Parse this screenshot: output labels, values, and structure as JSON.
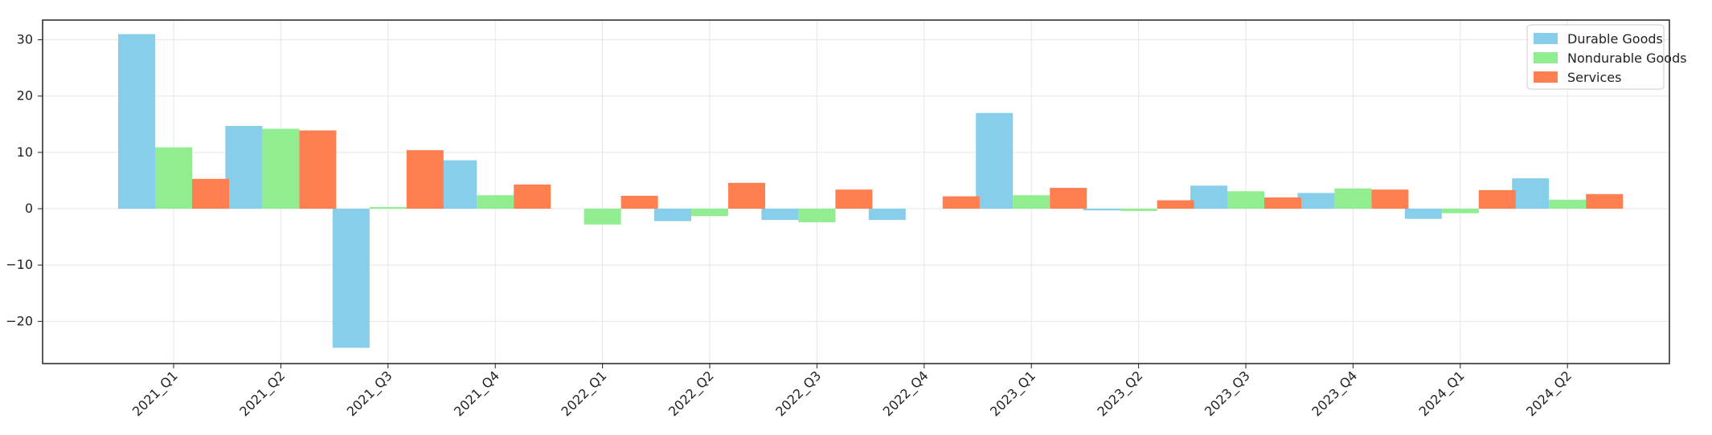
{
  "chart_data": {
    "type": "bar",
    "title": "",
    "xlabel": "",
    "ylabel": "",
    "categories": [
      "2021_Q1",
      "2021_Q2",
      "2021_Q3",
      "2021_Q4",
      "2022_Q1",
      "2022_Q2",
      "2022_Q3",
      "2022_Q4",
      "2023_Q1",
      "2023_Q2",
      "2023_Q3",
      "2023_Q4",
      "2024_Q1",
      "2024_Q2"
    ],
    "series": [
      {
        "name": "Durable Goods",
        "color": "#87CEEB",
        "values": [
          31.0,
          14.7,
          -24.7,
          8.6,
          0.0,
          -2.2,
          -2.0,
          -2.0,
          17.0,
          -0.3,
          4.1,
          2.8,
          -1.8,
          5.4
        ]
      },
      {
        "name": "Nondurable Goods",
        "color": "#90EE90",
        "values": [
          10.9,
          14.2,
          0.3,
          2.4,
          -2.8,
          -1.3,
          -2.4,
          0.0,
          2.4,
          -0.4,
          3.1,
          3.6,
          -0.8,
          1.6
        ]
      },
      {
        "name": "Services",
        "color": "#FF7F50",
        "values": [
          5.3,
          13.9,
          10.4,
          4.3,
          2.3,
          4.6,
          3.4,
          2.2,
          3.7,
          1.5,
          2.0,
          3.4,
          3.3,
          2.6
        ]
      }
    ],
    "yticks": [
      30,
      20,
      10,
      0,
      -10,
      -20
    ],
    "ytick_labels": [
      "30",
      "20",
      "10",
      "0",
      "−10",
      "−20"
    ],
    "ylim": [
      -27.5,
      33.5
    ],
    "grid": true,
    "legend_position": "upper right"
  }
}
